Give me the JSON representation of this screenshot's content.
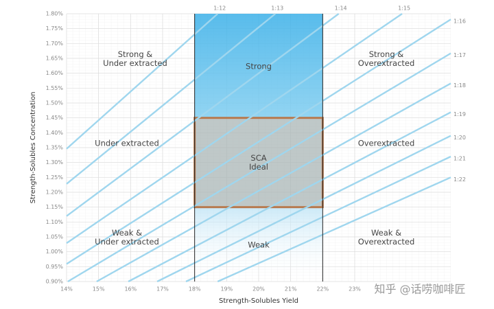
{
  "chart_data": {
    "type": "line",
    "x_label": "Strength-Solubles Yield",
    "y_label": "Strength-Solubles Concentration",
    "xlim": [
      14,
      26
    ],
    "ylim": [
      0.9,
      1.8
    ],
    "xticks": [
      {
        "value": 14,
        "label": "14%"
      },
      {
        "value": 15,
        "label": "15%"
      },
      {
        "value": 16,
        "label": "16%"
      },
      {
        "value": 17,
        "label": "17%"
      },
      {
        "value": 18,
        "label": "18%"
      },
      {
        "value": 19,
        "label": "19%"
      },
      {
        "value": 20,
        "label": "20%"
      },
      {
        "value": 21,
        "label": "21%"
      },
      {
        "value": 22,
        "label": "22%"
      },
      {
        "value": 23,
        "label": "23%"
      }
    ],
    "yticks": [
      {
        "value": 0.9,
        "label": "0.90%"
      },
      {
        "value": 0.95,
        "label": "0.95%"
      },
      {
        "value": 1.0,
        "label": "1.00%"
      },
      {
        "value": 1.05,
        "label": "1.05%"
      },
      {
        "value": 1.1,
        "label": "1.10%"
      },
      {
        "value": 1.15,
        "label": "1.15%"
      },
      {
        "value": 1.2,
        "label": "1.20%"
      },
      {
        "value": 1.25,
        "label": "1.25%"
      },
      {
        "value": 1.3,
        "label": "1.30%"
      },
      {
        "value": 1.35,
        "label": "1.35%"
      },
      {
        "value": 1.4,
        "label": "1.40%"
      },
      {
        "value": 1.45,
        "label": "1.45%"
      },
      {
        "value": 1.5,
        "label": "1.50%"
      },
      {
        "value": 1.55,
        "label": "1.55%"
      },
      {
        "value": 1.6,
        "label": "1.60%"
      },
      {
        "value": 1.65,
        "label": "1.65%"
      },
      {
        "value": 1.7,
        "label": "1.70%"
      },
      {
        "value": 1.75,
        "label": "1.75%"
      },
      {
        "value": 1.8,
        "label": "1.80%"
      }
    ],
    "grid": true,
    "line_color": "#9fd6ee",
    "series": [
      {
        "name": "1:12",
        "x": [
          14,
          18.72
        ],
        "values": [
          1.346,
          1.8
        ]
      },
      {
        "name": "1:13",
        "x": [
          14,
          20.52
        ],
        "values": [
          1.228,
          1.8
        ]
      },
      {
        "name": "1:14",
        "x": [
          14,
          22.5
        ],
        "values": [
          1.12,
          1.8
        ]
      },
      {
        "name": "1:15",
        "x": [
          14,
          24.48
        ],
        "values": [
          1.029,
          1.8
        ]
      },
      {
        "name": "1:16",
        "x": [
          14,
          26
        ],
        "values": [
          0.959,
          1.781
        ]
      },
      {
        "name": "1:17",
        "x": [
          14.04,
          26
        ],
        "values": [
          0.9,
          1.667
        ]
      },
      {
        "name": "1:18",
        "x": [
          14.94,
          26
        ],
        "values": [
          0.9,
          1.566
        ]
      },
      {
        "name": "1:19",
        "x": [
          15.93,
          26
        ],
        "values": [
          0.9,
          1.469
        ]
      },
      {
        "name": "1:20",
        "x": [
          16.83,
          26
        ],
        "values": [
          0.9,
          1.39
        ]
      },
      {
        "name": "1:21",
        "x": [
          17.73,
          26
        ],
        "values": [
          0.9,
          1.32
        ]
      },
      {
        "name": "1:22",
        "x": [
          18.72,
          26
        ],
        "values": [
          0.9,
          1.25
        ]
      }
    ],
    "ideal_x": [
      18,
      22
    ],
    "ideal_y": [
      1.15,
      1.45
    ],
    "regions": [
      [
        "Strong &",
        "Under extracted"
      ],
      [
        "Strong"
      ],
      [
        "Strong &",
        "Overextracted"
      ],
      [
        "Under extracted"
      ],
      [
        "SCA",
        "Ideal"
      ],
      [
        "Overextracted"
      ],
      [
        "Weak &",
        "Under extracted"
      ],
      [
        "Weak"
      ],
      [
        "Weak &",
        "Overextracted"
      ]
    ],
    "watermark": "知乎 @话唠咖啡匠"
  }
}
